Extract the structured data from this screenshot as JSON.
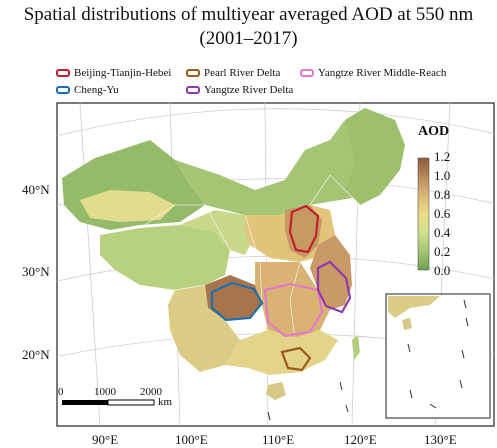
{
  "title_line1": "Spatial distributions of multiyear averaged AOD at 550 nm",
  "title_line2": "(2001–2017)",
  "legend": [
    {
      "label": "Beijing-Tianjin-Hebei",
      "color": "#c0212b"
    },
    {
      "label": "Pearl River Delta",
      "color": "#9a5a18"
    },
    {
      "label": "Yangtze River Middle-Reach",
      "color": "#e27ac6"
    },
    {
      "label": "Cheng-Yu",
      "color": "#1f6fae"
    },
    {
      "label": "Yangtze River Delta",
      "color": "#8e3aa8"
    }
  ],
  "colorbar": {
    "title": "AOD",
    "ticks": [
      "1.2",
      "1.0",
      "0.8",
      "0.6",
      "0.4",
      "0.2",
      "0.0"
    ],
    "colors": [
      "#8a5a3c",
      "#b98a5a",
      "#dcb977",
      "#ebdc86",
      "#cfe08c",
      "#a3c672",
      "#6f9f52"
    ]
  },
  "latitude_labels": [
    "40°N",
    "30°N",
    "20°N"
  ],
  "longitude_labels": [
    "90°E",
    "100°E",
    "110°E",
    "120°E",
    "130°E"
  ],
  "scale_bar": {
    "ticks": [
      "0",
      "1000",
      "2000"
    ],
    "unit": "km"
  }
}
